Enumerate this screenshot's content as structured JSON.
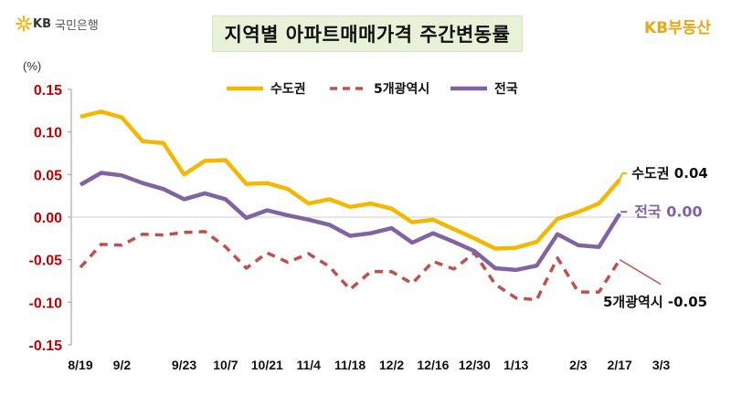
{
  "header": {
    "title": "지역별 아파트매매가격 주간변동률",
    "brand_left_mark": "KB",
    "brand_left_name": "국민은행",
    "brand_right": "KB부동산"
  },
  "colors": {
    "metro": "#f5b800",
    "five": "#c0504d",
    "nation": "#8064a2",
    "axis_text": "#c00000",
    "accent": "#e6a817"
  },
  "chart_data": {
    "type": "line",
    "title": "지역별 아파트매매가격 주간변동률",
    "unit_label": "(%)",
    "ylim": [
      -0.15,
      0.15
    ],
    "yticks": [
      "0.15",
      "0.10",
      "0.05",
      "0.00",
      "-0.05",
      "-0.10",
      "-0.15"
    ],
    "ytick_values": [
      0.15,
      0.1,
      0.05,
      0.0,
      -0.05,
      -0.1,
      -0.15
    ],
    "x_tick_labels": [
      "8/19",
      "9/2",
      "9/23",
      "10/7",
      "10/21",
      "11/4",
      "11/18",
      "12/2",
      "12/16",
      "12/30",
      "1/13",
      "2/3",
      "2/17",
      "3/3"
    ],
    "x_tick_indices": [
      0,
      2,
      5,
      7,
      9,
      11,
      13,
      15,
      17,
      19,
      21,
      24,
      26,
      28
    ],
    "legend_position": "top",
    "series": [
      {
        "name": "수도권",
        "style": "solid",
        "values": [
          0.118,
          0.124,
          0.117,
          0.089,
          0.087,
          0.05,
          0.066,
          0.067,
          0.039,
          0.04,
          0.033,
          0.016,
          0.021,
          0.012,
          0.016,
          0.01,
          -0.006,
          -0.003,
          -0.014,
          -0.025,
          -0.037,
          -0.036,
          -0.029,
          -0.002,
          0.006,
          0.016,
          0.044
        ],
        "end_label": "수도권 0.04"
      },
      {
        "name": "5개광역시",
        "style": "dashed",
        "values": [
          -0.059,
          -0.032,
          -0.033,
          -0.02,
          -0.021,
          -0.018,
          -0.017,
          -0.035,
          -0.06,
          -0.042,
          -0.053,
          -0.043,
          -0.058,
          -0.085,
          -0.064,
          -0.064,
          -0.078,
          -0.052,
          -0.061,
          -0.042,
          -0.079,
          -0.095,
          -0.097,
          -0.048,
          -0.088,
          -0.088,
          -0.05
        ],
        "end_label": "5개광역시 -0.05"
      },
      {
        "name": "전국",
        "style": "solid",
        "values": [
          0.038,
          0.052,
          0.049,
          0.04,
          0.033,
          0.021,
          0.028,
          0.021,
          -0.001,
          0.008,
          0.002,
          -0.003,
          -0.009,
          -0.022,
          -0.019,
          -0.013,
          -0.03,
          -0.019,
          -0.029,
          -0.04,
          -0.06,
          -0.062,
          -0.057,
          -0.02,
          -0.033,
          -0.035,
          0.004
        ],
        "end_label": "전국 0.00"
      }
    ]
  }
}
